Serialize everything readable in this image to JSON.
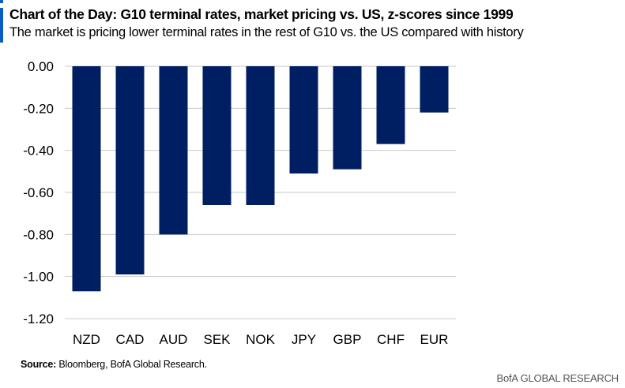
{
  "header": {
    "title": "Chart of the Day: G10 terminal rates, market pricing vs. US, z-scores since 1999",
    "subtitle": "The market is pricing lower terminal rates in the rest of G10 vs. the US compared with history"
  },
  "footer": {
    "source_label": "Source:",
    "source_text": " Bloomberg, BofA Global Research.",
    "brand": "BofA GLOBAL RESEARCH"
  },
  "colors": {
    "bar": "#001f63",
    "accent": "#0a5cc7",
    "grid": "#c8c8c8"
  },
  "chart_data": {
    "type": "bar",
    "title": "Chart of the Day: G10 terminal rates, market pricing vs. US, z-scores since 1999",
    "xlabel": "",
    "ylabel": "",
    "categories": [
      "NZD",
      "CAD",
      "AUD",
      "SEK",
      "NOK",
      "JPY",
      "GBP",
      "CHF",
      "EUR"
    ],
    "values": [
      -1.07,
      -0.99,
      -0.8,
      -0.66,
      -0.66,
      -0.51,
      -0.49,
      -0.37,
      -0.22
    ],
    "ylim": [
      -1.2,
      0.0
    ],
    "yticks": [
      0.0,
      -0.2,
      -0.4,
      -0.6,
      -0.8,
      -1.0,
      -1.2
    ],
    "ytick_labels": [
      "0.00",
      "-0.20",
      "-0.40",
      "-0.60",
      "-0.80",
      "-1.00",
      "-1.20"
    ],
    "grid": true,
    "legend": "none"
  }
}
